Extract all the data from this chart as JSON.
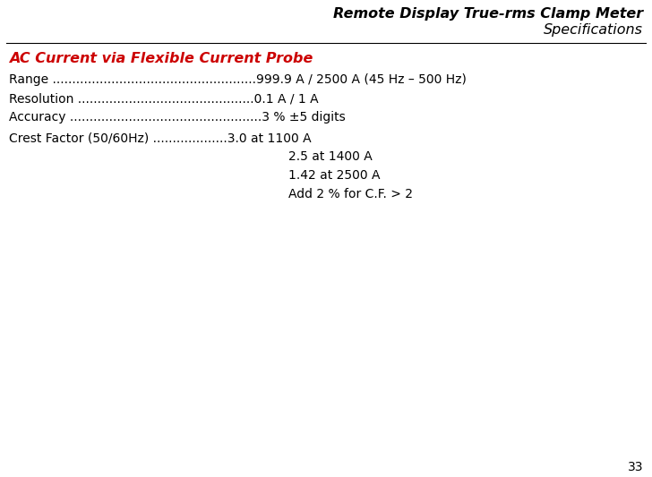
{
  "title_line1": "Remote Display True-rms Clamp Meter",
  "title_line2": "Specifications",
  "title_color": "#000000",
  "title_fontsize": 11.5,
  "section_heading": "AC Current via Flexible Current Probe",
  "section_color": "#CC0000",
  "section_fontsize": 11.5,
  "rows": [
    {
      "label": "Range ",
      "dots": "....................................................",
      "value": "999.9 A / 2500 A (45 Hz – 500 Hz)"
    },
    {
      "label": "Resolution ",
      "dots": ".............................................",
      "value": "0.1 A / 1 A"
    },
    {
      "label": "Accuracy ",
      "dots": ".................................................",
      "value": "3 % ±5 digits"
    },
    {
      "label": "Crest Factor (50/60Hz) ",
      "dots": "...................",
      "value": "3.0 at 1100 A"
    }
  ],
  "continuation_lines": [
    "2.5 at 1400 A",
    "1.42 at 2500 A",
    "Add 2 % for C.F. > 2"
  ],
  "page_number": "33",
  "bg_color": "#ffffff",
  "text_color": "#000000",
  "body_fontsize": 10.0,
  "line_color": "#000000"
}
